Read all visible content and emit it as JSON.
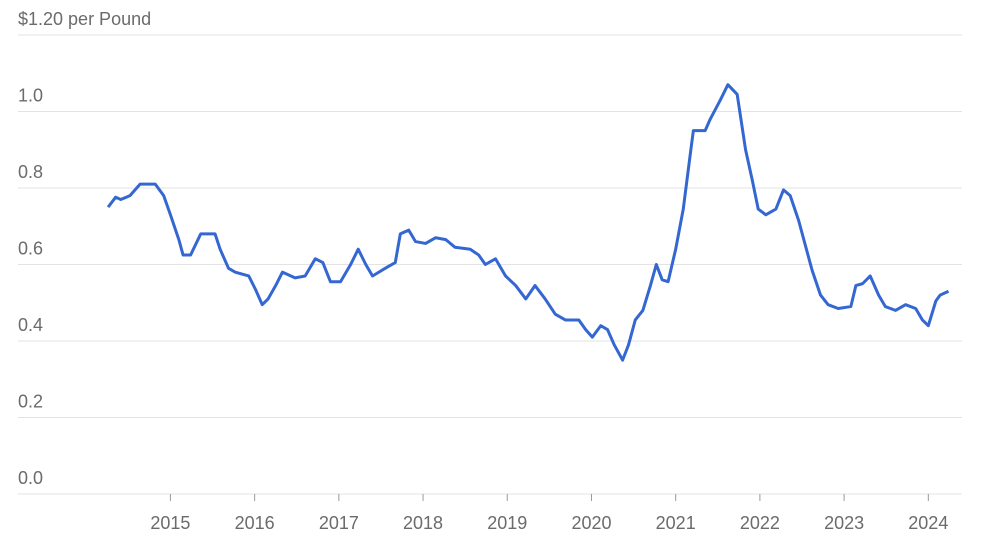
{
  "chart_data": {
    "type": "line",
    "x": [
      2014.26,
      2014.35,
      2014.41,
      2014.52,
      2014.64,
      2014.82,
      2014.92,
      2015.0,
      2015.1,
      2015.15,
      2015.24,
      2015.36,
      2015.53,
      2015.59,
      2015.69,
      2015.77,
      2015.93,
      2016.01,
      2016.09,
      2016.16,
      2016.25,
      2016.33,
      2016.48,
      2016.6,
      2016.72,
      2016.81,
      2016.9,
      2017.02,
      2017.14,
      2017.23,
      2017.32,
      2017.4,
      2017.55,
      2017.67,
      2017.73,
      2017.83,
      2017.91,
      2018.03,
      2018.15,
      2018.27,
      2018.38,
      2018.56,
      2018.66,
      2018.74,
      2018.86,
      2018.98,
      2019.1,
      2019.22,
      2019.33,
      2019.45,
      2019.57,
      2019.69,
      2019.85,
      2019.93,
      2020.01,
      2020.11,
      2020.19,
      2020.27,
      2020.37,
      2020.44,
      2020.52,
      2020.61,
      2020.7,
      2020.77,
      2020.84,
      2020.91,
      2021.0,
      2021.09,
      2021.18,
      2021.21,
      2021.35,
      2021.41,
      2021.53,
      2021.62,
      2021.73,
      2021.83,
      2021.91,
      2021.98,
      2022.07,
      2022.19,
      2022.28,
      2022.36,
      2022.46,
      2022.54,
      2022.62,
      2022.72,
      2022.81,
      2022.93,
      2023.08,
      2023.14,
      2023.22,
      2023.31,
      2023.41,
      2023.49,
      2023.61,
      2023.73,
      2023.85,
      2023.93,
      2024.0,
      2024.09,
      2024.14,
      2024.24
    ],
    "series": [
      {
        "color": "#3467d1",
        "values": [
          0.75,
          0.776,
          0.77,
          0.78,
          0.81,
          0.81,
          0.78,
          0.73,
          0.665,
          0.625,
          0.625,
          0.68,
          0.68,
          0.64,
          0.59,
          0.58,
          0.57,
          0.535,
          0.495,
          0.51,
          0.545,
          0.58,
          0.565,
          0.57,
          0.615,
          0.605,
          0.555,
          0.555,
          0.6,
          0.64,
          0.6,
          0.57,
          0.59,
          0.605,
          0.68,
          0.69,
          0.66,
          0.655,
          0.67,
          0.665,
          0.645,
          0.64,
          0.625,
          0.6,
          0.615,
          0.57,
          0.545,
          0.51,
          0.545,
          0.51,
          0.47,
          0.455,
          0.455,
          0.43,
          0.41,
          0.44,
          0.43,
          0.39,
          0.35,
          0.39,
          0.455,
          0.48,
          0.545,
          0.6,
          0.56,
          0.555,
          0.64,
          0.745,
          0.9,
          0.95,
          0.95,
          0.98,
          1.03,
          1.07,
          1.045,
          0.9,
          0.82,
          0.745,
          0.73,
          0.745,
          0.795,
          0.78,
          0.715,
          0.65,
          0.585,
          0.52,
          0.495,
          0.485,
          0.49,
          0.545,
          0.55,
          0.57,
          0.52,
          0.49,
          0.48,
          0.495,
          0.485,
          0.455,
          0.44,
          0.505,
          0.52,
          0.53
        ]
      }
    ],
    "xlim": [
      2013.19,
      2024.4
    ],
    "xticks": [
      2015,
      2016,
      2017,
      2018,
      2019,
      2020,
      2021,
      2022,
      2023,
      2024
    ],
    "ylim": [
      0,
      1.2
    ],
    "yticks": [
      {
        "value": 0,
        "label": "0.0"
      },
      0.2,
      0.4,
      0.6,
      0.8,
      {
        "value": 1,
        "label": "1.0"
      },
      {
        "value": 1.2,
        "label": "$1.20 per Pound"
      }
    ],
    "grid": true
  }
}
